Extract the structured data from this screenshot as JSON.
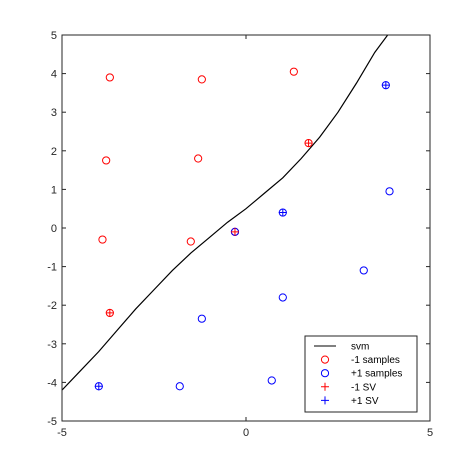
{
  "chart_data": {
    "type": "scatter",
    "xlim": [
      -5,
      5
    ],
    "ylim": [
      -5,
      5
    ],
    "xticks": [
      -5,
      0,
      5
    ],
    "yticks": [
      -5,
      -4,
      -3,
      -2,
      -1,
      0,
      1,
      2,
      3,
      4,
      5
    ],
    "grid": false,
    "legend_position": "bottom-right",
    "series": [
      {
        "name": "svm",
        "kind": "line",
        "color": "#000000",
        "points": [
          [
            -5,
            -4.2
          ],
          [
            -4.5,
            -3.7
          ],
          [
            -4,
            -3.2
          ],
          [
            -3.5,
            -2.65
          ],
          [
            -3,
            -2.1
          ],
          [
            -2.5,
            -1.6
          ],
          [
            -2,
            -1.1
          ],
          [
            -1.5,
            -0.65
          ],
          [
            -1,
            -0.25
          ],
          [
            -0.5,
            0.15
          ],
          [
            0,
            0.5
          ],
          [
            0.5,
            0.9
          ],
          [
            1,
            1.3
          ],
          [
            1.5,
            1.8
          ],
          [
            2,
            2.35
          ],
          [
            2.5,
            3.0
          ],
          [
            3,
            3.75
          ],
          [
            3.5,
            4.55
          ],
          [
            3.85,
            5.0
          ]
        ]
      },
      {
        "name": "-1 samples",
        "kind": "circle",
        "color": "#ff0000",
        "points": [
          [
            -3.7,
            3.9
          ],
          [
            -1.2,
            3.85
          ],
          [
            1.3,
            4.05
          ],
          [
            -3.8,
            1.75
          ],
          [
            -1.3,
            1.8
          ],
          [
            1.7,
            2.2
          ],
          [
            -3.9,
            -0.3
          ],
          [
            -1.5,
            -0.35
          ],
          [
            -3.7,
            -2.2
          ],
          [
            -0.3,
            -0.1
          ]
        ]
      },
      {
        "name": "+1 samples",
        "kind": "circle",
        "color": "#0000ff",
        "points": [
          [
            3.8,
            3.7
          ],
          [
            3.9,
            0.95
          ],
          [
            1.0,
            0.4
          ],
          [
            3.2,
            -1.1
          ],
          [
            1.0,
            -1.8
          ],
          [
            -1.2,
            -2.35
          ],
          [
            -4.0,
            -4.1
          ],
          [
            -1.8,
            -4.1
          ],
          [
            0.7,
            -3.95
          ],
          [
            -0.3,
            -0.1
          ]
        ]
      },
      {
        "name": "-1 SV",
        "kind": "plus",
        "color": "#ff0000",
        "points": [
          [
            1.7,
            2.2
          ],
          [
            -3.7,
            -2.2
          ],
          [
            -0.3,
            -0.1
          ]
        ]
      },
      {
        "name": "+1 SV",
        "kind": "plus",
        "color": "#0000ff",
        "points": [
          [
            3.8,
            3.7
          ],
          [
            1.0,
            0.4
          ],
          [
            -4.0,
            -4.1
          ]
        ]
      }
    ]
  }
}
